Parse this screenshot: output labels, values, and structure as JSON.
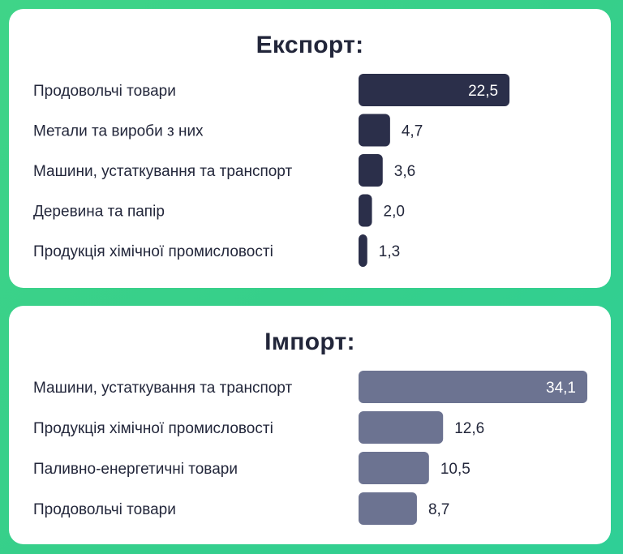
{
  "chart_data": [
    {
      "type": "bar",
      "orientation": "horizontal",
      "title": "Експорт:",
      "categories": [
        "Продовольчі товари",
        "Метали та вироби з них",
        "Машини, устаткування та транспорт",
        "Деревина та папір",
        "Продукція хімічної промисловості"
      ],
      "values": [
        22.5,
        4.7,
        3.6,
        2.0,
        1.3
      ],
      "value_labels": [
        "22,5",
        "4,7",
        "3,6",
        "2,0",
        "1,3"
      ],
      "color": "#2b2f4a",
      "grid": false
    },
    {
      "type": "bar",
      "orientation": "horizontal",
      "title": "Імпорт:",
      "categories": [
        "Машини, устаткування та транспорт",
        "Продукція хімічної промисловості",
        "Паливно-енергетичні товари",
        "Продовольчі товари"
      ],
      "values": [
        34.1,
        12.6,
        10.5,
        8.7
      ],
      "value_labels": [
        "34,1",
        "12,6",
        "10,5",
        "8,7"
      ],
      "color": "#6c7391",
      "grid": false
    }
  ]
}
